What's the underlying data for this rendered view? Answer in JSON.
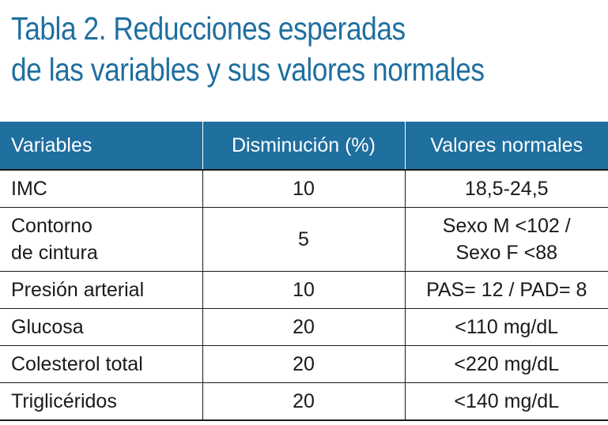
{
  "title": {
    "line1": "Tabla 2. Reducciones esperadas",
    "line2": "de las variables y sus valores normales"
  },
  "table": {
    "headers": [
      "Variables",
      "Disminución (%)",
      "Valores normales"
    ],
    "rows": [
      {
        "variable": [
          "IMC"
        ],
        "disminucion": "10",
        "valores": [
          "18,5-24,5"
        ]
      },
      {
        "variable": [
          "Contorno",
          "de cintura"
        ],
        "disminucion": "5",
        "valores": [
          "Sexo M <102 /",
          "Sexo F <88"
        ]
      },
      {
        "variable": [
          "Presión arterial"
        ],
        "disminucion": "10",
        "valores": [
          "PAS= 12 / PAD= 8"
        ]
      },
      {
        "variable": [
          "Glucosa"
        ],
        "disminucion": "20",
        "valores": [
          "<110 mg/dL"
        ]
      },
      {
        "variable": [
          "Colesterol total"
        ],
        "disminucion": "20",
        "valores": [
          "<220 mg/dL"
        ]
      },
      {
        "variable": [
          "Triglicéridos"
        ],
        "disminucion": "20",
        "valores": [
          "<140 mg/dL"
        ]
      }
    ]
  },
  "colors": {
    "accent": "#1f6f9f",
    "text": "#1a1a1a",
    "background": "#ffffff"
  }
}
